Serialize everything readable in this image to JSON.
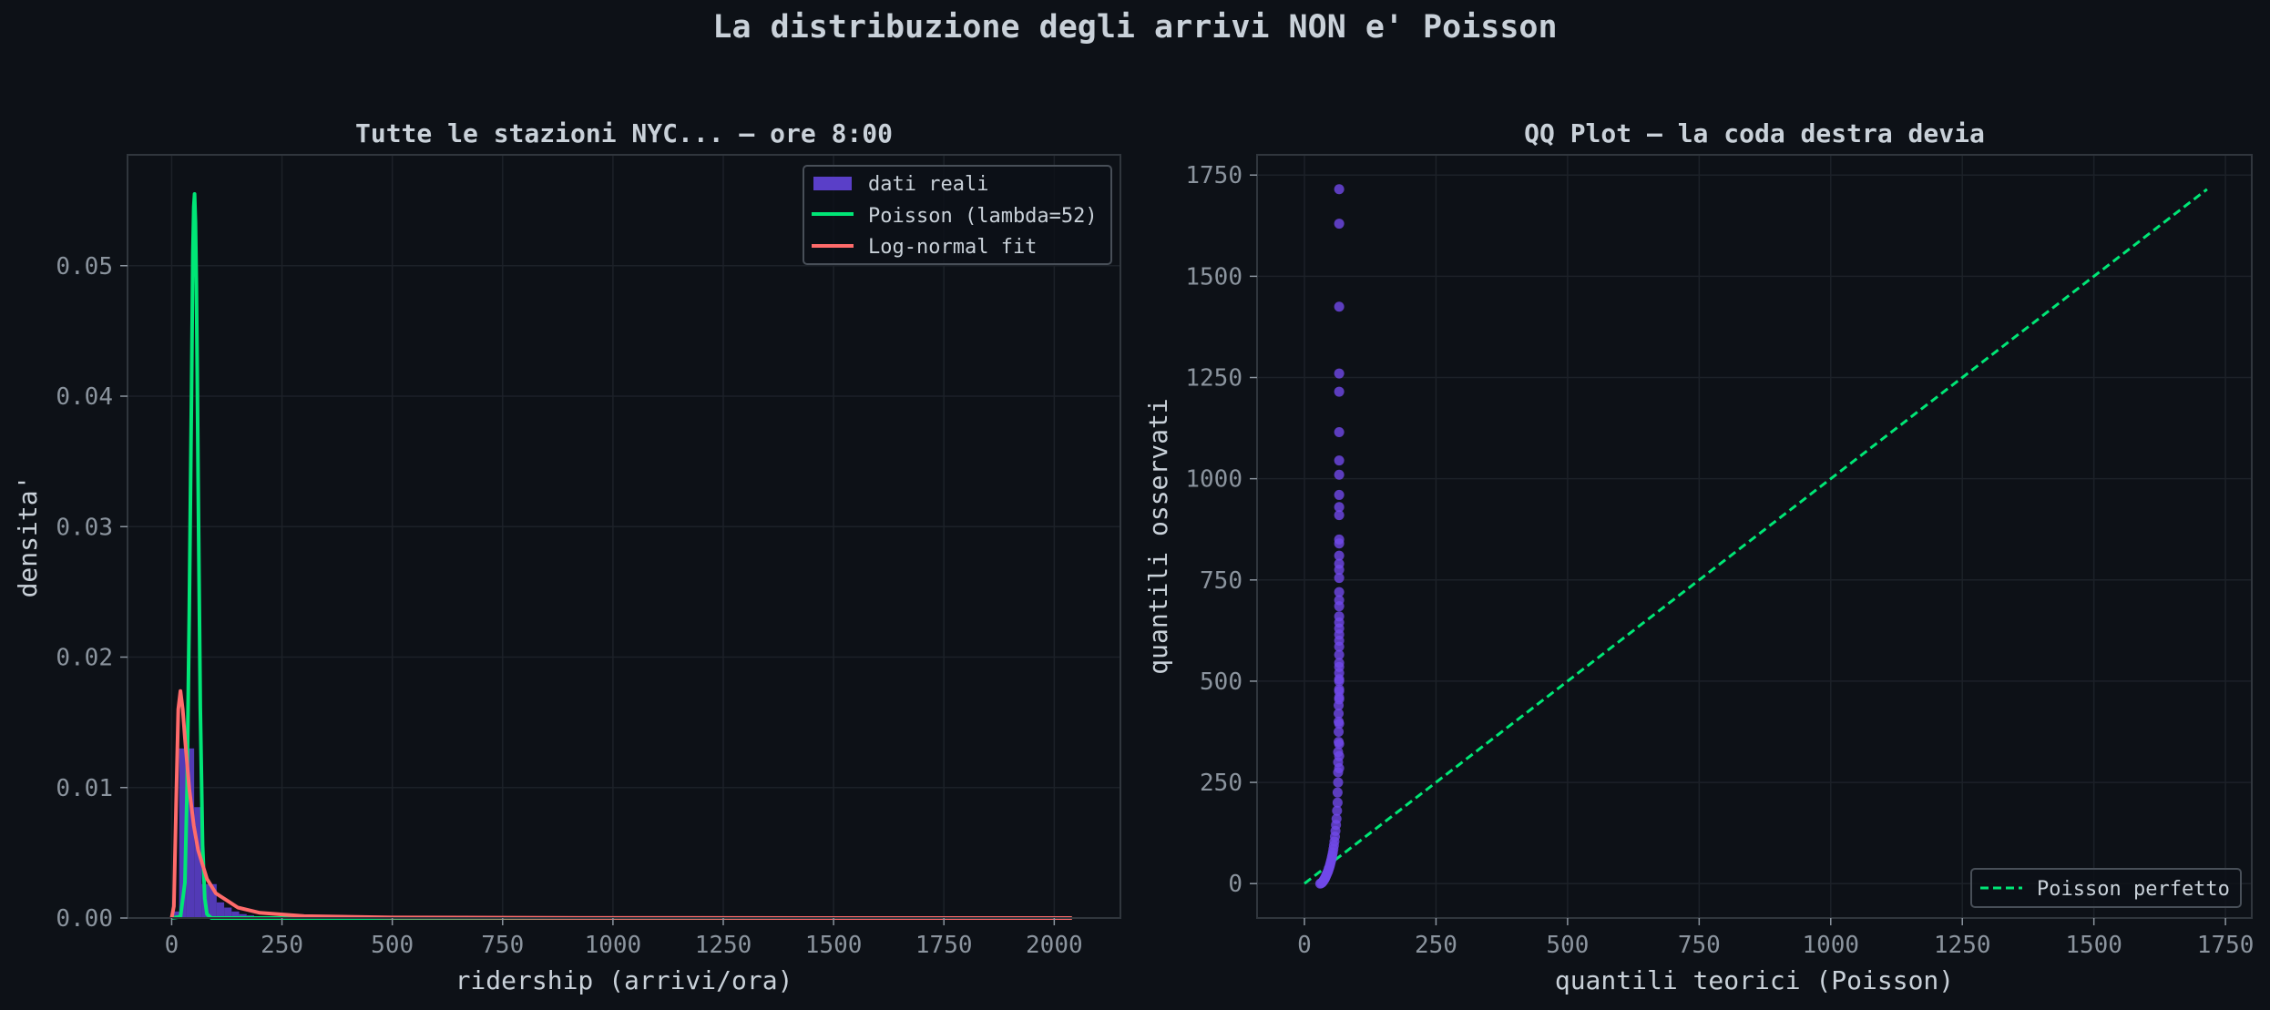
{
  "suptitle": "La distribuzione degli arrivi NON e' Poisson",
  "colors": {
    "background": "#0d1117",
    "axes_face": "#0d1117",
    "spine": "#30363d",
    "grid": "#1c2128",
    "text": "#c9d1d9",
    "tick": "#8b949e",
    "histogram": "#5a3fc8",
    "poisson": "#00e676",
    "lognormal": "#ff6b6b",
    "qq_points": "#7048e8"
  },
  "chart_data": [
    {
      "type": "bar",
      "title": "Tutte le stazioni NYC... — ore 8:00",
      "xlabel": "ridership (arrivi/ora)",
      "ylabel": "densita'",
      "xlim": [
        -100,
        2150
      ],
      "ylim": [
        0,
        0.0585
      ],
      "xticks": [
        0,
        250,
        500,
        750,
        1000,
        1250,
        1500,
        1750,
        2000
      ],
      "yticks": [
        0.0,
        0.01,
        0.02,
        0.03,
        0.04,
        0.05
      ],
      "ytick_labels": [
        "0.00",
        "0.01",
        "0.02",
        "0.03",
        "0.04",
        "0.05"
      ],
      "grid": true,
      "legend_position": "upper right",
      "legend": [
        "dati reali",
        "Poisson (lambda=52)",
        "Log-normal fit"
      ],
      "histogram": {
        "name": "dati reali",
        "bin_edges": [
          0,
          17,
          34,
          51,
          68,
          85,
          102,
          119,
          136,
          153,
          170,
          187,
          204
        ],
        "values": [
          0.0005,
          0.013,
          0.013,
          0.0085,
          0.0026,
          0.0026,
          0.0012,
          0.0008,
          0.0005,
          0.0003,
          0.0002,
          0.0001
        ]
      },
      "lines": [
        {
          "name": "Poisson (lambda=52)",
          "x": [
            0,
            20,
            30,
            35,
            40,
            45,
            48,
            50,
            52,
            54,
            56,
            58,
            60,
            65,
            70,
            75,
            80,
            90,
            100,
            2040
          ],
          "y": [
            0,
            0.0001,
            0.0027,
            0.0101,
            0.0236,
            0.04,
            0.051,
            0.0545,
            0.0555,
            0.0533,
            0.0485,
            0.042,
            0.0337,
            0.0161,
            0.0056,
            0.0015,
            0.0003,
            0,
            0,
            0
          ]
        },
        {
          "name": "Log-normal fit",
          "x": [
            0,
            5,
            10,
            15,
            20,
            25,
            30,
            40,
            50,
            60,
            80,
            100,
            150,
            200,
            300,
            500,
            1000,
            1500,
            2040
          ],
          "y": [
            0,
            0.0009,
            0.0086,
            0.016,
            0.0174,
            0.016,
            0.0138,
            0.0099,
            0.0071,
            0.0052,
            0.003,
            0.0019,
            0.0008,
            0.0004,
            0.00015,
            4e-05,
            5e-06,
            1e-06,
            0
          ]
        }
      ]
    },
    {
      "type": "scatter",
      "title": "QQ Plot — la coda destra devia",
      "xlabel": "quantili teorici (Poisson)",
      "ylabel": "quantili osservati",
      "xlim": [
        -90,
        1800
      ],
      "ylim": [
        -85,
        1800
      ],
      "xticks": [
        0,
        250,
        500,
        750,
        1000,
        1250,
        1500,
        1750
      ],
      "yticks": [
        0,
        250,
        500,
        750,
        1000,
        1250,
        1500,
        1750
      ],
      "grid": true,
      "legend_position": "lower right",
      "legend": [
        "Poisson perfetto"
      ],
      "reference_line": {
        "name": "Poisson perfetto",
        "x": [
          0,
          1715
        ],
        "y": [
          0,
          1715
        ],
        "style": "dashed"
      },
      "points": {
        "x": [
          30,
          32,
          34,
          35,
          36,
          37,
          38,
          39,
          40,
          41,
          42,
          43,
          44,
          45,
          46,
          47,
          48,
          49,
          50,
          51,
          52,
          53,
          54,
          55,
          56,
          57,
          58,
          59,
          60,
          61,
          62,
          63,
          63,
          64,
          64,
          64,
          64,
          65,
          65,
          65,
          65,
          65,
          66,
          66,
          66,
          66,
          66,
          66,
          66,
          66,
          66,
          66,
          66,
          66,
          66,
          66,
          66,
          66,
          66,
          66,
          66,
          66,
          66,
          66,
          66,
          66,
          66,
          66,
          66,
          66,
          66,
          66,
          66,
          66,
          66,
          66,
          66,
          66,
          66,
          66,
          66,
          66
        ],
        "y": [
          0,
          1,
          3,
          5,
          7,
          9,
          11,
          13,
          16,
          19,
          22,
          25,
          28,
          31,
          35,
          39,
          43,
          48,
          53,
          58,
          64,
          70,
          77,
          85,
          94,
          104,
          116,
          130,
          145,
          160,
          180,
          200,
          225,
          250,
          275,
          300,
          325,
          350,
          375,
          400,
          420,
          440,
          460,
          480,
          500,
          520,
          545,
          565,
          600,
          630,
          660,
          700,
          720,
          775,
          790,
          810,
          840,
          850,
          910,
          930,
          960,
          1010,
          1045,
          1115,
          1215,
          1260,
          1425,
          1630,
          1715,
          285,
          315,
          345,
          395,
          455,
          475,
          505,
          535,
          585,
          615,
          645,
          685,
          755
        ]
      }
    }
  ]
}
